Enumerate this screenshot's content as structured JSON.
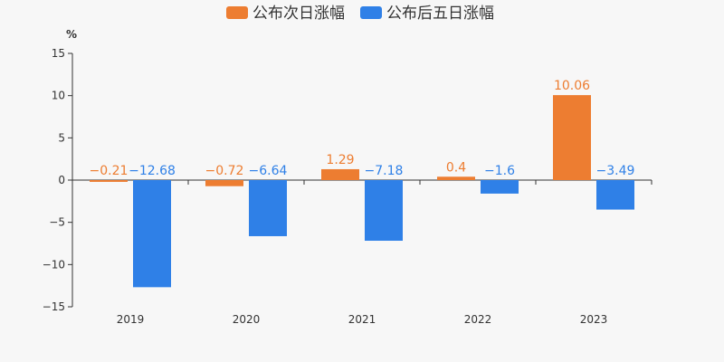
{
  "chart_data": {
    "type": "bar",
    "y_unit": "%",
    "categories": [
      "2019",
      "2020",
      "2021",
      "2022",
      "2023"
    ],
    "series": [
      {
        "name": "公布次日涨幅",
        "color": "#ed7d31",
        "values": [
          -0.21,
          -0.72,
          1.29,
          0.4,
          10.06
        ],
        "labels": [
          "−0.21",
          "−0.72",
          "1.29",
          "0.4",
          "10.06"
        ]
      },
      {
        "name": "公布后五日涨幅",
        "color": "#2f80e7",
        "values": [
          -12.68,
          -6.64,
          -7.18,
          -1.6,
          -3.49
        ],
        "labels": [
          "−12.68",
          "−6.64",
          "−7.18",
          "−1.6",
          "−3.49"
        ]
      }
    ],
    "ylim": [
      -15,
      15
    ],
    "yticks": [
      15,
      10,
      5,
      0,
      -5,
      -10,
      -15
    ],
    "ytick_labels": [
      "15",
      "10",
      "5",
      "0",
      "−5",
      "−10",
      "−15"
    ],
    "legend": "top-center",
    "grid": false
  }
}
